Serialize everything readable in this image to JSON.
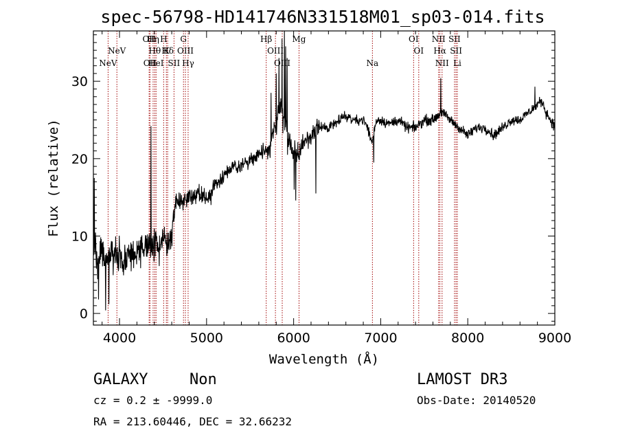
{
  "chart_data": {
    "type": "line",
    "title": "spec-56798-HD141746N331518M01_sp03-014.fits",
    "xlabel": "Wavelength (Å)",
    "ylabel": "Flux (relative)",
    "xlim": [
      3700,
      9000
    ],
    "ylim": [
      -1.5,
      36.5
    ],
    "xticks": [
      4000,
      5000,
      6000,
      7000,
      8000,
      9000
    ],
    "yticks": [
      0,
      10,
      20,
      30
    ],
    "xtick_labels": [
      "4000",
      "5000",
      "6000",
      "7000",
      "8000",
      "9000"
    ],
    "ytick_labels": [
      "0",
      "10",
      "20",
      "30"
    ],
    "spectrum_anchors": [
      [
        3700,
        9
      ],
      [
        3750,
        7
      ],
      [
        3800,
        8
      ],
      [
        3850,
        6
      ],
      [
        3900,
        8
      ],
      [
        3950,
        7
      ],
      [
        4000,
        8
      ],
      [
        4050,
        6
      ],
      [
        4100,
        8
      ],
      [
        4150,
        7
      ],
      [
        4200,
        8
      ],
      [
        4250,
        8
      ],
      [
        4300,
        9
      ],
      [
        4340,
        9
      ],
      [
        4360,
        8
      ],
      [
        4400,
        9
      ],
      [
        4450,
        8
      ],
      [
        4500,
        10
      ],
      [
        4550,
        9
      ],
      [
        4600,
        10
      ],
      [
        4650,
        15
      ],
      [
        4700,
        14
      ],
      [
        4750,
        15
      ],
      [
        4800,
        15
      ],
      [
        4850,
        15
      ],
      [
        4900,
        16
      ],
      [
        4950,
        15
      ],
      [
        5000,
        15
      ],
      [
        5050,
        15
      ],
      [
        5100,
        17
      ],
      [
        5150,
        17
      ],
      [
        5200,
        18
      ],
      [
        5300,
        19
      ],
      [
        5400,
        19
      ],
      [
        5500,
        20
      ],
      [
        5600,
        20.5
      ],
      [
        5700,
        21
      ],
      [
        5750,
        22
      ],
      [
        5800,
        25
      ],
      [
        5850,
        27
      ],
      [
        5900,
        24
      ],
      [
        5950,
        22
      ],
      [
        6000,
        21
      ],
      [
        6050,
        20
      ],
      [
        6100,
        22
      ],
      [
        6200,
        23
      ],
      [
        6300,
        24
      ],
      [
        6400,
        24
      ],
      [
        6500,
        25
      ],
      [
        6600,
        25.5
      ],
      [
        6700,
        25
      ],
      [
        6800,
        25
      ],
      [
        6850,
        24
      ],
      [
        6900,
        22
      ],
      [
        6950,
        25
      ],
      [
        7000,
        25
      ],
      [
        7100,
        24.5
      ],
      [
        7200,
        25
      ],
      [
        7300,
        24
      ],
      [
        7400,
        24
      ],
      [
        7500,
        25
      ],
      [
        7600,
        25
      ],
      [
        7700,
        26
      ],
      [
        7800,
        25
      ],
      [
        7900,
        24
      ],
      [
        8000,
        23
      ],
      [
        8100,
        24
      ],
      [
        8200,
        24
      ],
      [
        8300,
        23
      ],
      [
        8400,
        24
      ],
      [
        8500,
        25
      ],
      [
        8600,
        25
      ],
      [
        8700,
        26
      ],
      [
        8800,
        27
      ],
      [
        8850,
        27.5
      ],
      [
        8900,
        26
      ],
      [
        8950,
        25
      ],
      [
        9000,
        24
      ]
    ],
    "spectrum_features": [
      {
        "x": 4362,
        "value": 24.2
      },
      {
        "x": 3710,
        "value": 17.5
      },
      {
        "x": 3760,
        "value": 1.8
      },
      {
        "x": 3840,
        "value": 0.4
      },
      {
        "x": 3880,
        "value": 1.2
      },
      {
        "x": 5740,
        "value": 28.5
      },
      {
        "x": 5800,
        "value": 31.0
      },
      {
        "x": 5830,
        "value": 33.0
      },
      {
        "x": 5865,
        "value": 35.5
      },
      {
        "x": 5895,
        "value": 36.5
      },
      {
        "x": 5910,
        "value": 34.5
      },
      {
        "x": 5925,
        "value": 33.0
      },
      {
        "x": 6005,
        "value": 16.0
      },
      {
        "x": 6025,
        "value": 14.6
      },
      {
        "x": 6255,
        "value": 15.5
      },
      {
        "x": 6920,
        "value": 19.5
      },
      {
        "x": 7690,
        "value": 30.4
      },
      {
        "x": 8770,
        "value": 29.3
      }
    ],
    "spectral_lines": [
      {
        "wavelength": 3869,
        "label": "NeV",
        "row": 3
      },
      {
        "wavelength": 3970,
        "label": "NeV",
        "row": 2
      },
      {
        "wavelength": 4340,
        "label": "OII",
        "row": 1
      },
      {
        "wavelength": 4350,
        "label": "OII",
        "row": 3
      },
      {
        "wavelength": 4386,
        "label": "Hη",
        "row": 1
      },
      {
        "wavelength": 4405,
        "label": "Hθ",
        "row": 2
      },
      {
        "wavelength": 4420,
        "label": "HeI",
        "row": 3
      },
      {
        "wavelength": 4507,
        "label": "H",
        "row": 1
      },
      {
        "wavelength": 4538,
        "label": "K",
        "row": 2
      },
      {
        "wavelength": 4553,
        "label": "Hδ",
        "row": 2
      },
      {
        "wavelength": 4626,
        "label": "SII",
        "row": 3
      },
      {
        "wavelength": 4735,
        "label": "G",
        "row": 1
      },
      {
        "wavelength": 4757,
        "label": "OIII",
        "row": 2
      },
      {
        "wavelength": 4788,
        "label": "Hγ",
        "row": 3
      },
      {
        "wavelength": 5685,
        "label": "Hβ",
        "row": 1
      },
      {
        "wavelength": 5791,
        "label": "OIII",
        "row": 2
      },
      {
        "wavelength": 5869,
        "label": "OIII",
        "row": 3
      },
      {
        "wavelength": 6062,
        "label": "Mg",
        "row": 1
      },
      {
        "wavelength": 6905,
        "label": "Na",
        "row": 3
      },
      {
        "wavelength": 7378,
        "label": "OI",
        "row": 1
      },
      {
        "wavelength": 7437,
        "label": "OI",
        "row": 2
      },
      {
        "wavelength": 7665,
        "label": "NII",
        "row": 1
      },
      {
        "wavelength": 7680,
        "label": "Hα",
        "row": 2
      },
      {
        "wavelength": 7705,
        "label": "NII",
        "row": 3
      },
      {
        "wavelength": 7848,
        "label": "SII",
        "row": 1
      },
      {
        "wavelength": 7865,
        "label": "SII",
        "row": 2
      },
      {
        "wavelength": 7880,
        "label": "Li",
        "row": 3
      }
    ],
    "line_color": "#000000",
    "marker_line_color": "#a00000"
  },
  "info": {
    "object_class": "GALAXY",
    "subclass": "Non",
    "survey": "LAMOST DR3",
    "redshift_line": "cz = 0.2 ± -9999.0",
    "obs_date": "Obs-Date: 20140520",
    "coords": "RA = 213.60446, DEC =  32.66232"
  }
}
